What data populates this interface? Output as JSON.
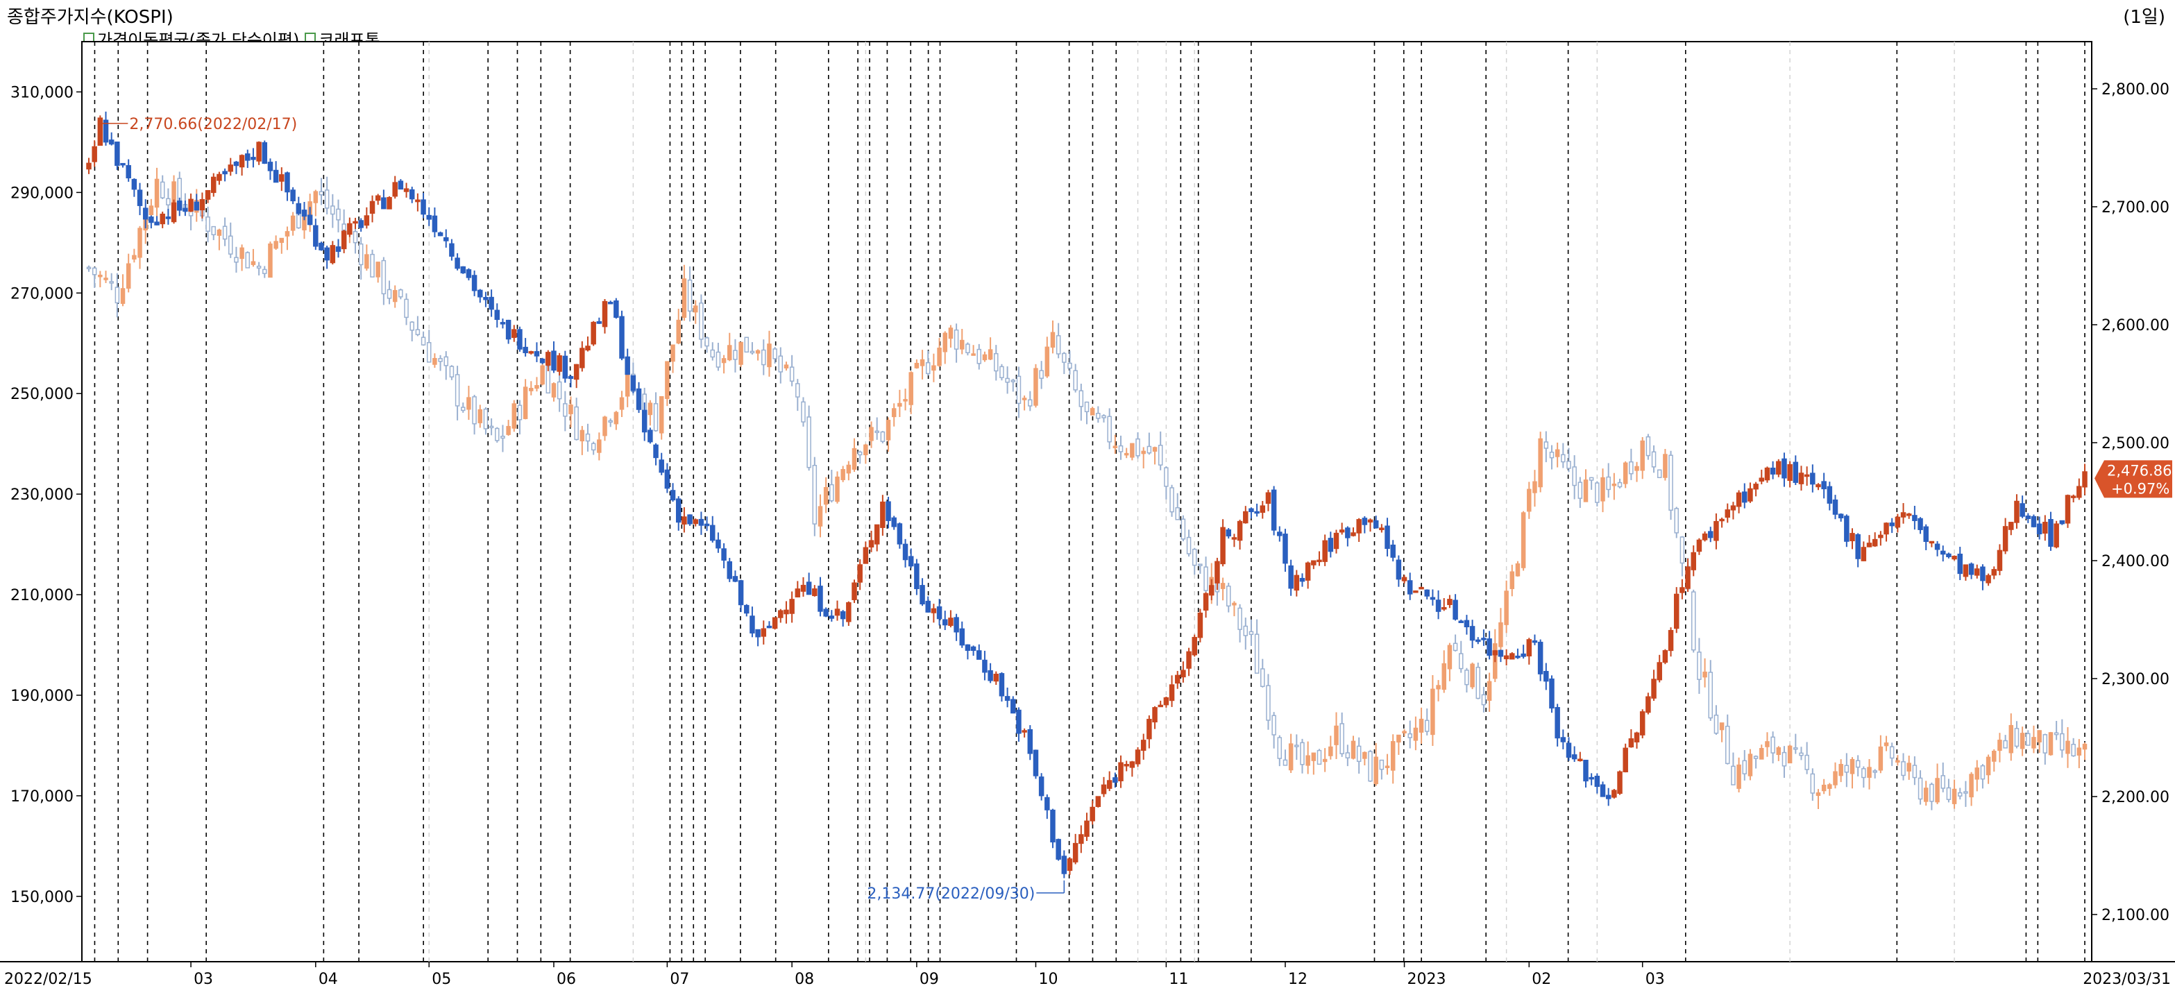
{
  "header": {
    "title": "종합주가지수(KOSPI)",
    "period": "(1일)"
  },
  "legend": [
    {
      "label": "가격이동평균(종가,단순이평)"
    },
    {
      "label": "코래프톤"
    }
  ],
  "colors": {
    "up": "#c8461e",
    "down": "#2a5fbf",
    "up_light": "#f0a070",
    "down_light": "#9ab0d0",
    "grid": "#000000",
    "last_badge": "#d9542a"
  },
  "chart_data": {
    "type": "candlestick",
    "x_ticks": [
      "2022/02/15",
      "03",
      "04",
      "05",
      "06",
      "07",
      "08",
      "09",
      "10",
      "11",
      "12",
      "2023",
      "02",
      "03",
      "2023/03/31"
    ],
    "left_axis": {
      "ticks": [
        "310,000",
        "290,000",
        "270,000",
        "250,000",
        "230,000",
        "210,000",
        "190,000",
        "170,000",
        "150,000"
      ],
      "range": [
        137000,
        320000
      ]
    },
    "right_axis": {
      "ticks": [
        "2,800.00",
        "2,700.00",
        "2,600.00",
        "2,500.00",
        "2,400.00",
        "2,300.00",
        "2,200.00",
        "2,100.00"
      ],
      "range": [
        2060,
        2840
      ]
    },
    "annotations": {
      "high": "2,770.66(2022/02/17)",
      "low": "2,134.77(2022/09/30)"
    },
    "last": {
      "value": "2,476.86",
      "change": "+0.97%"
    },
    "series": [
      {
        "name": "종합주가지수(KOSPI)",
        "axis": "right",
        "start": 2730,
        "low": 2134.77,
        "end": 2476.86,
        "waypoints": [
          [
            0,
            2730
          ],
          [
            2,
            2770.66
          ],
          [
            10,
            2690
          ],
          [
            18,
            2700
          ],
          [
            30,
            2750
          ],
          [
            42,
            2660
          ],
          [
            55,
            2720
          ],
          [
            62,
            2680
          ],
          [
            72,
            2600
          ],
          [
            85,
            2560
          ],
          [
            92,
            2620
          ],
          [
            97,
            2520
          ],
          [
            104,
            2440
          ],
          [
            110,
            2420
          ],
          [
            118,
            2330
          ],
          [
            125,
            2380
          ],
          [
            133,
            2350
          ],
          [
            140,
            2450
          ],
          [
            147,
            2370
          ],
          [
            160,
            2300
          ],
          [
            165,
            2250
          ],
          [
            172,
            2134.77
          ],
          [
            178,
            2200
          ],
          [
            186,
            2250
          ],
          [
            195,
            2330
          ],
          [
            200,
            2420
          ],
          [
            208,
            2450
          ],
          [
            212,
            2380
          ],
          [
            220,
            2420
          ],
          [
            226,
            2440
          ],
          [
            232,
            2380
          ],
          [
            240,
            2360
          ],
          [
            248,
            2320
          ],
          [
            255,
            2330
          ],
          [
            260,
            2240
          ],
          [
            268,
            2200
          ],
          [
            275,
            2280
          ],
          [
            282,
            2400
          ],
          [
            290,
            2450
          ],
          [
            298,
            2480
          ],
          [
            305,
            2460
          ],
          [
            312,
            2410
          ],
          [
            320,
            2440
          ],
          [
            328,
            2400
          ],
          [
            335,
            2380
          ],
          [
            340,
            2450
          ],
          [
            346,
            2420
          ],
          [
            352,
            2476.86
          ]
        ]
      },
      {
        "name": "코래프톤",
        "axis": "left",
        "waypoints": [
          [
            0,
            275000
          ],
          [
            5,
            270000
          ],
          [
            12,
            292000
          ],
          [
            20,
            285000
          ],
          [
            30,
            275000
          ],
          [
            40,
            290000
          ],
          [
            47,
            280000
          ],
          [
            50,
            275000
          ],
          [
            58,
            262000
          ],
          [
            66,
            248000
          ],
          [
            72,
            240000
          ],
          [
            80,
            255000
          ],
          [
            88,
            240000
          ],
          [
            95,
            252000
          ],
          [
            100,
            245000
          ],
          [
            105,
            270000
          ],
          [
            110,
            258000
          ],
          [
            118,
            260000
          ],
          [
            125,
            250000
          ],
          [
            128,
            225000
          ],
          [
            135,
            240000
          ],
          [
            140,
            242000
          ],
          [
            147,
            255000
          ],
          [
            152,
            262000
          ],
          [
            160,
            255000
          ],
          [
            165,
            248000
          ],
          [
            170,
            260000
          ],
          [
            176,
            245000
          ],
          [
            182,
            240000
          ],
          [
            188,
            238000
          ],
          [
            195,
            215000
          ],
          [
            200,
            210000
          ],
          [
            205,
            200000
          ],
          [
            210,
            180000
          ],
          [
            215,
            175000
          ],
          [
            220,
            182000
          ],
          [
            226,
            175000
          ],
          [
            230,
            178000
          ],
          [
            236,
            185000
          ],
          [
            240,
            200000
          ],
          [
            246,
            190000
          ],
          [
            250,
            208000
          ],
          [
            256,
            240000
          ],
          [
            262,
            232000
          ],
          [
            268,
            230000
          ],
          [
            274,
            240000
          ],
          [
            278,
            235000
          ],
          [
            284,
            195000
          ],
          [
            290,
            175000
          ],
          [
            298,
            180000
          ],
          [
            305,
            172000
          ],
          [
            310,
            175000
          ],
          [
            318,
            178000
          ],
          [
            322,
            172000
          ],
          [
            328,
            170000
          ],
          [
            334,
            176000
          ],
          [
            340,
            182000
          ],
          [
            345,
            180000
          ],
          [
            352,
            178000
          ]
        ]
      }
    ]
  }
}
